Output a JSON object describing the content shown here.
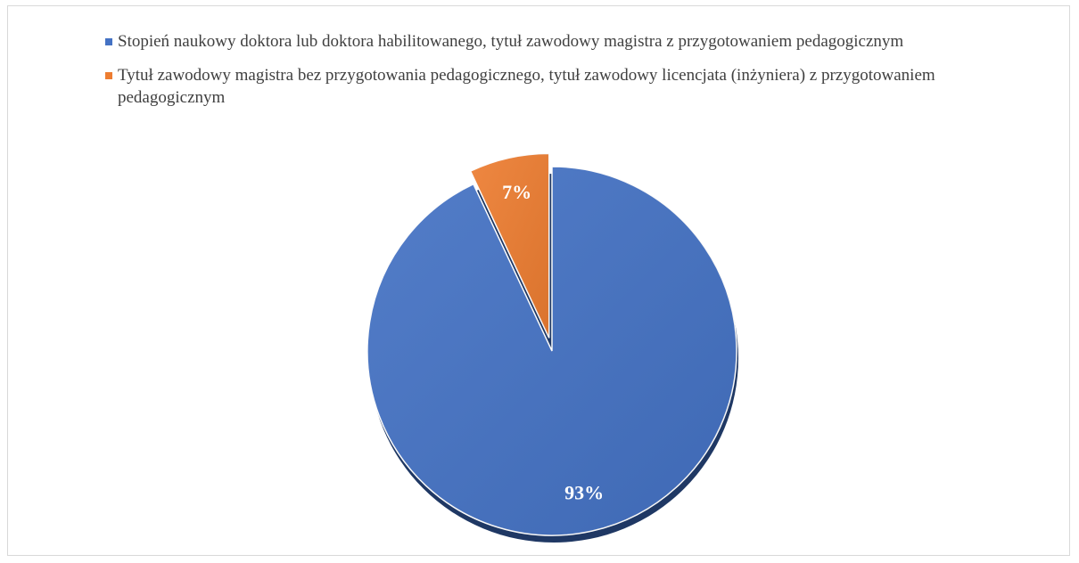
{
  "chart_data": {
    "type": "pie",
    "categories": [
      "Stopień naukowy doktora lub doktora habilitowanego, tytuł zawodowy magistra z przygotowaniem pedagogicznym",
      "Tytuł zawodowy magistra bez przygotowania pedagogicznego, tytuł zawodowy licencjata (inżyniera) z przygotowaniem pedagogicznym"
    ],
    "values": [
      93,
      7
    ],
    "value_labels": [
      "93%",
      "7%"
    ],
    "colors": [
      "#4472c4",
      "#ed7d31"
    ],
    "legend": "top"
  }
}
